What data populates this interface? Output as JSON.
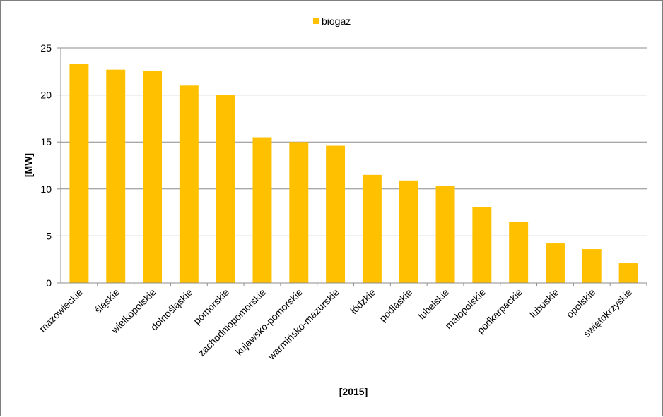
{
  "chart_data": {
    "type": "bar",
    "title": "",
    "xlabel": "[2015]",
    "ylabel": "[MW]",
    "ylim": [
      0,
      25
    ],
    "yticks": [
      0,
      5,
      10,
      15,
      20,
      25
    ],
    "grid": true,
    "legend_position": "top-center",
    "categories": [
      "mazowieckie",
      "śląskie",
      "wielkopolskie",
      "dolnośląskie",
      "pomorskie",
      "zachodniopomorskie",
      "kujawsko-pomorskie",
      "warmińsko-mazurskie",
      "łódzkie",
      "podlaskie",
      "lubelskie",
      "małopolskie",
      "podkarpackie",
      "lubuskie",
      "opolskie",
      "świętokrzyskie"
    ],
    "series": [
      {
        "name": "biogaz",
        "color": "#FFC000",
        "values": [
          23.3,
          22.7,
          22.6,
          21.0,
          20.0,
          15.5,
          15.0,
          14.6,
          11.5,
          10.9,
          10.3,
          8.1,
          6.5,
          4.2,
          3.6,
          2.1
        ]
      }
    ]
  }
}
